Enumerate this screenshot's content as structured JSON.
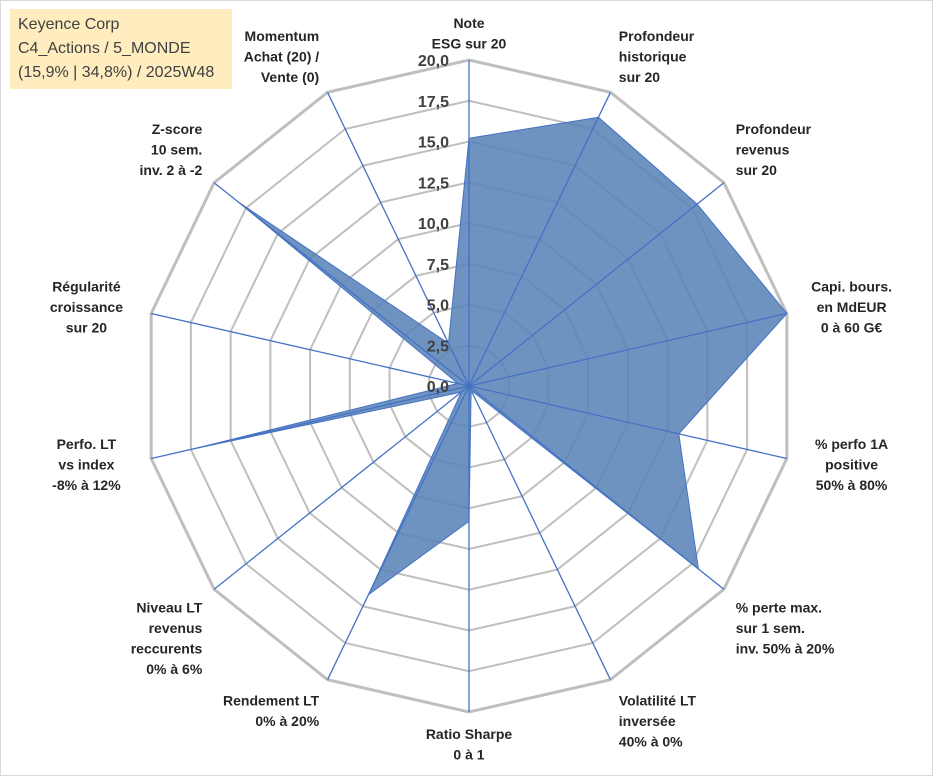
{
  "header": {
    "company": "Keyence Corp",
    "portfolio": "C4_Actions / 5_MONDE",
    "info": "(15,9% | 34,8%) / 2025W48"
  },
  "chart_data": {
    "type": "radar",
    "rmax": 20,
    "ticks": [
      "0,0",
      "2,5",
      "5,0",
      "7,5",
      "10,0",
      "12,5",
      "15,0",
      "17,5",
      "20,0"
    ],
    "axes": [
      {
        "label": [
          "Note",
          "ESG sur 20"
        ]
      },
      {
        "label": [
          "Profondeur",
          "historique",
          "sur 20"
        ]
      },
      {
        "label": [
          "Profondeur",
          "revenus",
          "sur 20"
        ]
      },
      {
        "label": [
          "Capi. bours.",
          "en MdEUR",
          "0 à 60 G€"
        ]
      },
      {
        "label": [
          "% perfo 1A",
          "positive",
          "50% à 80%"
        ]
      },
      {
        "label": [
          "% perte max.",
          "sur 1 sem.",
          "inv. 50% à 20%"
        ]
      },
      {
        "label": [
          "Volatilité LT",
          "inversée",
          "40% à 0%"
        ]
      },
      {
        "label": [
          "Ratio Sharpe",
          "0 à 1"
        ]
      },
      {
        "label": [
          "Rendement LT",
          "0% à 20%"
        ]
      },
      {
        "label": [
          "Niveau LT",
          "revenus",
          "reccurents",
          "0% à 6%"
        ]
      },
      {
        "label": [
          "Perfo. LT",
          "vs index",
          "-8% à 12%"
        ]
      },
      {
        "label": [
          "Régularité",
          "croissance",
          "sur 20"
        ]
      },
      {
        "label": [
          "Z-score",
          "10 sem.",
          "inv. 2 à -2"
        ]
      },
      {
        "label": [
          "Momentum",
          "Achat (20) /",
          "Vente (0)"
        ]
      }
    ],
    "series": [
      {
        "values": [
          15.2,
          18.3,
          17.9,
          20.0,
          13.2,
          18.0,
          0.3,
          8.3,
          14.2,
          0.6,
          17.3,
          0.7,
          18.1,
          2.9
        ]
      }
    ],
    "colors": {
      "fill": "#5b84b8",
      "stroke": "#4472c4",
      "grid": "#bfbfbf",
      "spoke": "#4472c4"
    }
  }
}
